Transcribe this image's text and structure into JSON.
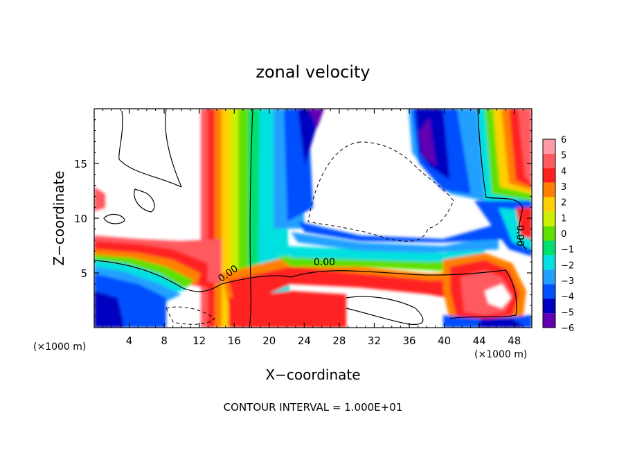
{
  "chart_data": {
    "type": "heatmap",
    "title": "zonal velocity",
    "xlabel": "X−coordinate",
    "ylabel": "Z−coordinate",
    "x_unit_left": "(×1000 m)",
    "x_unit_right": "(×1000 m)",
    "xlim": [
      0,
      50
    ],
    "ylim": [
      0,
      20
    ],
    "xticks": [
      4,
      8,
      12,
      16,
      20,
      24,
      28,
      32,
      36,
      40,
      44,
      48
    ],
    "yticks": [
      5,
      10,
      15
    ],
    "footer": "CONTOUR INTERVAL = 1.000E+01",
    "colorbar": {
      "levels": [
        6,
        5,
        4,
        3,
        2,
        1,
        0,
        -1,
        -2,
        -3,
        -4,
        -5,
        -6
      ],
      "labels": [
        "6",
        "5",
        "4",
        "3",
        "2",
        "1",
        "0",
        "−1",
        "−2",
        "−3",
        "−4",
        "−5",
        "−6"
      ],
      "colors": [
        "#ff9aa8",
        "#ff5a60",
        "#ff2020",
        "#ff8000",
        "#ffd000",
        "#cfef00",
        "#60e000",
        "#00e070",
        "#00e0e0",
        "#20a0ff",
        "#0050ff",
        "#0000c0",
        "#6000b0"
      ]
    },
    "contour_labels": [
      {
        "text": "0.00",
        "x": 15.5,
        "z": 4.7
      },
      {
        "text": "0.00",
        "x": 26.3,
        "z": 5.7
      },
      {
        "text": "0.00",
        "x": 48.3,
        "z": 8.4
      }
    ]
  }
}
